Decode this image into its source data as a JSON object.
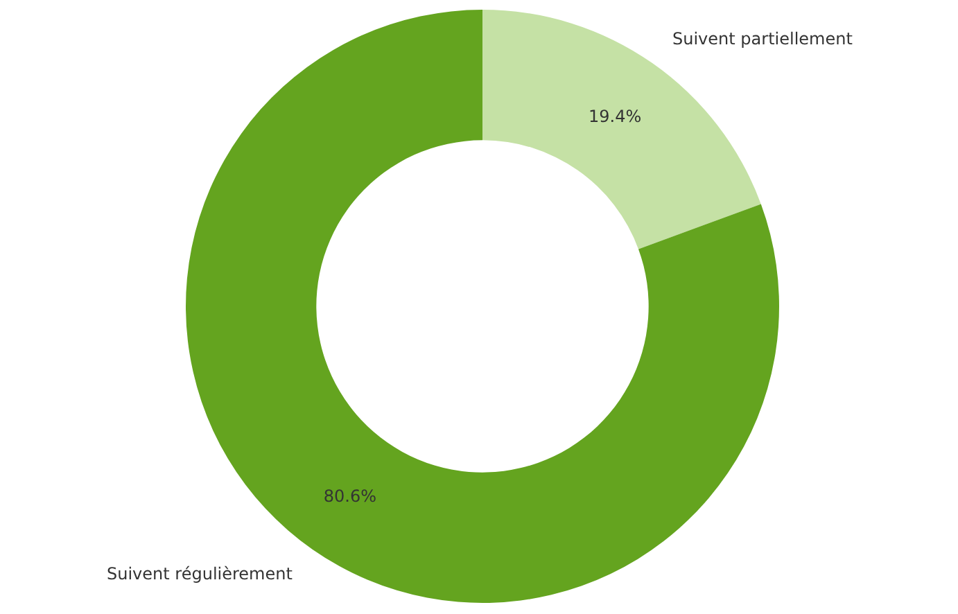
{
  "chart_data": {
    "type": "donut",
    "categories": [
      "Suivent partiellement",
      "Suivent régulièrement"
    ],
    "values": [
      19.4,
      80.6
    ],
    "value_labels": [
      "19.4%",
      "80.6%"
    ],
    "colors": [
      "#c5e1a5",
      "#64a41f"
    ],
    "legend": false
  }
}
